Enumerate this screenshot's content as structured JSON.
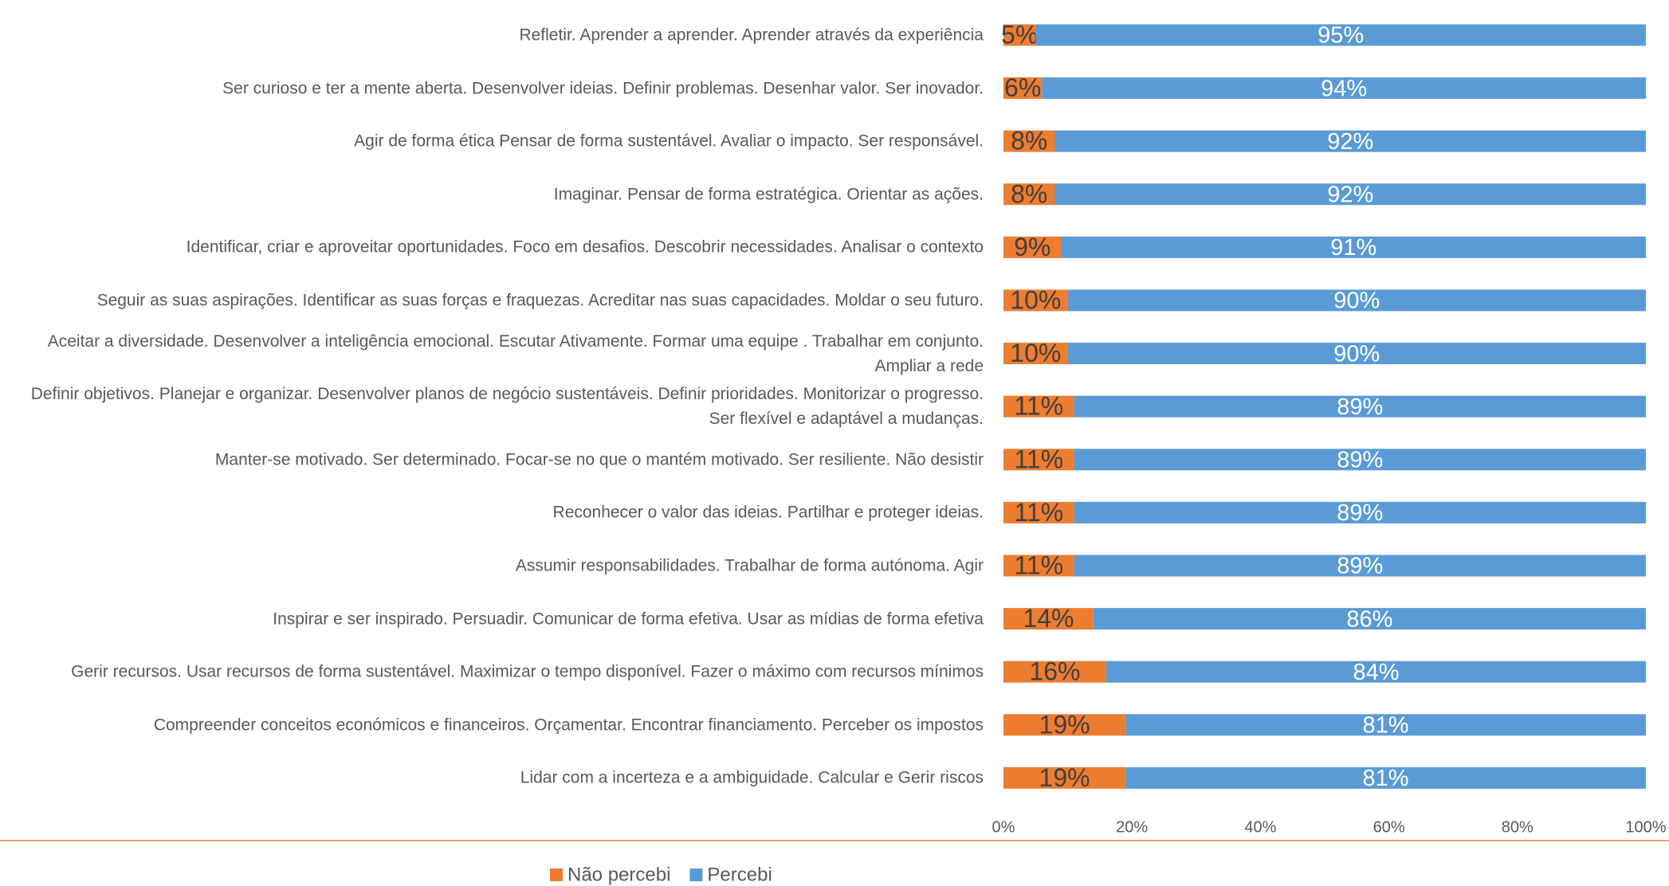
{
  "chart_data": {
    "type": "stacked-bar-horizontal",
    "categories": [
      "Refletir. Aprender a aprender. Aprender através da experiência",
      "Ser curioso e ter a mente aberta. Desenvolver ideias. Definir problemas. Desenhar valor. Ser inovador.",
      "Agir de forma ética Pensar de forma sustentável. Avaliar o impacto. Ser responsável.",
      "Imaginar. Pensar de forma estratégica. Orientar as ações.",
      "Identificar, criar e aproveitar oportunidades. Foco em desafios. Descobrir necessidades. Analisar o contexto",
      "Seguir as suas aspirações. Identificar as suas forças e fraquezas. Acreditar nas suas capacidades. Moldar o seu futuro.",
      "Aceitar a diversidade. Desenvolver a inteligência emocional. Escutar Ativamente. Formar uma equipe . Trabalhar em conjunto. Ampliar a rede",
      "Definir objetivos. Planejar e organizar. Desenvolver planos de negócio sustentáveis. Definir prioridades. Monitorizar o progresso. Ser flexível e adaptável a mudanças.",
      "Manter-se motivado. Ser determinado. Focar-se no que o mantém motivado. Ser resiliente. Não desistir",
      "Reconhecer o valor das ideias. Partilhar e proteger ideias.",
      "Assumir responsabilidades. Trabalhar de forma autónoma. Agir",
      "Inspirar e ser inspirado. Persuadir. Comunicar de forma efetiva. Usar as mídias de forma efetiva",
      "Gerir recursos. Usar recursos de forma sustentável. Maximizar o tempo disponível. Fazer o máximo com recursos mínimos",
      "Compreender conceitos económicos e financeiros. Orçamentar. Encontrar financiamento. Perceber os impostos",
      "Lidar com a incerteza e a ambiguidade. Calcular e Gerir riscos"
    ],
    "series": [
      {
        "name": "Não percebi",
        "color": "#ED7D31",
        "values": [
          5,
          6,
          8,
          8,
          9,
          10,
          10,
          11,
          11,
          11,
          11,
          14,
          16,
          19,
          19
        ],
        "value_labels": [
          "5%",
          "6%",
          "8%",
          "8%",
          "9%",
          "10%",
          "10%",
          "11%",
          "11%",
          "11%",
          "11%",
          "14%",
          "16%",
          "19%",
          "19%"
        ]
      },
      {
        "name": "Percebi",
        "color": "#5B9BD5",
        "values": [
          95,
          94,
          92,
          92,
          91,
          90,
          90,
          89,
          89,
          89,
          89,
          86,
          84,
          81,
          81
        ],
        "value_labels": [
          "95%",
          "94%",
          "92%",
          "92%",
          "91%",
          "90%",
          "90%",
          "89%",
          "89%",
          "89%",
          "89%",
          "86%",
          "84%",
          "81%",
          "81%"
        ]
      }
    ],
    "xlim": [
      0,
      100
    ],
    "xticks": [
      {
        "value": 0,
        "label": "0%"
      },
      {
        "value": 20,
        "label": "20%"
      },
      {
        "value": 40,
        "label": "40%"
      },
      {
        "value": 60,
        "label": "60%"
      },
      {
        "value": 80,
        "label": "80%"
      },
      {
        "value": 100,
        "label": "100%"
      }
    ],
    "grid": false,
    "legend": "bottom"
  }
}
